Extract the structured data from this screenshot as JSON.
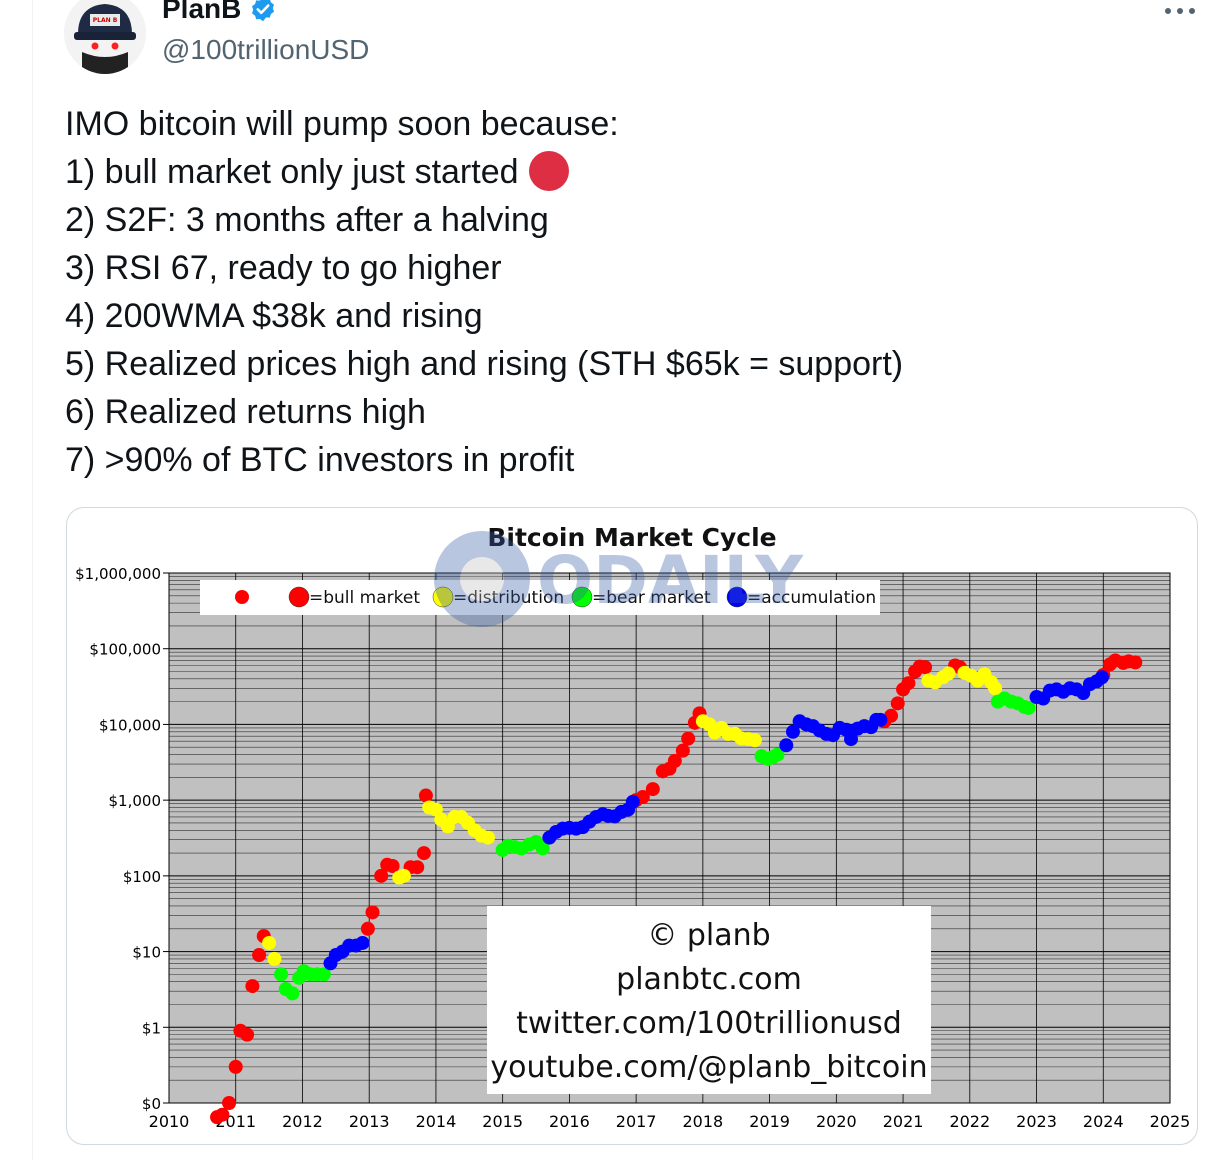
{
  "author": {
    "display_name": "PlanB",
    "handle": "@100trillionUSD",
    "verified": true,
    "avatar_text": "PLANB 100trillionUSD"
  },
  "tweet": {
    "lines": [
      "IMO bitcoin will pump soon because:",
      "1) bull market only just started",
      "2) S2F: 3 months after a halving",
      "3) RSI 67, ready to go higher",
      "4) 200WMA $38k and rising",
      "5) Realized prices high and rising (STH $65k = support)",
      "6) Realized returns high",
      "7) >90% of BTC investors in profit"
    ],
    "emoji": "red-circle"
  },
  "watermark": "ODAILY",
  "colors": {
    "bull": "#ff0000",
    "distribution": "#ffff00",
    "bear": "#00ff00",
    "accumulation": "#0000ff",
    "verified": "#1d9bf0",
    "plot_bg": "#c0c0c0"
  },
  "chart_data": {
    "type": "scatter",
    "title": "Bitcoin Market Cycle",
    "y_scale": "log",
    "xlim": [
      2010,
      2025
    ],
    "ylim": [
      0.1,
      1000000
    ],
    "x_ticks": [
      "2010",
      "2011",
      "2012",
      "2013",
      "2014",
      "2015",
      "2016",
      "2017",
      "2018",
      "2019",
      "2020",
      "2021",
      "2022",
      "2023",
      "2024",
      "2025"
    ],
    "y_ticks": [
      {
        "value": 0.1,
        "label": "$0"
      },
      {
        "value": 1,
        "label": "$1"
      },
      {
        "value": 10,
        "label": "$10"
      },
      {
        "value": 100,
        "label": "$100"
      },
      {
        "value": 1000,
        "label": "$1,000"
      },
      {
        "value": 10000,
        "label": "$10,000"
      },
      {
        "value": 100000,
        "label": "$100,000"
      },
      {
        "value": 1000000,
        "label": "$1,000,000"
      }
    ],
    "legend": {
      "placement": "top",
      "entries": [
        {
          "key": "bull",
          "label": "=bull market"
        },
        {
          "key": "distribution",
          "label": "=distribution"
        },
        {
          "key": "bear",
          "label": "=bear market"
        },
        {
          "key": "accumulation",
          "label": "=accumulation"
        }
      ]
    },
    "annotation_lines": [
      "© planb",
      "planbtc.com",
      "twitter.com/100trillionusd",
      "youtube.com/@planb_bitcoin"
    ],
    "series": [
      {
        "key": "bull",
        "points": [
          [
            2010.72,
            0.065
          ],
          [
            2010.8,
            0.07
          ],
          [
            2010.9,
            0.1
          ],
          [
            2011.0,
            0.3
          ],
          [
            2011.07,
            0.9
          ],
          [
            2011.17,
            0.8
          ],
          [
            2011.25,
            3.5
          ],
          [
            2011.35,
            9
          ],
          [
            2011.42,
            16
          ],
          [
            2012.98,
            20
          ],
          [
            2013.05,
            33
          ],
          [
            2013.18,
            100
          ],
          [
            2013.27,
            140
          ],
          [
            2013.35,
            135
          ],
          [
            2013.62,
            130
          ],
          [
            2013.72,
            130
          ],
          [
            2013.82,
            200
          ],
          [
            2013.85,
            1150
          ],
          [
            2017.0,
            1000
          ],
          [
            2017.1,
            1100
          ],
          [
            2017.25,
            1400
          ],
          [
            2017.4,
            2400
          ],
          [
            2017.5,
            2600
          ],
          [
            2017.58,
            3300
          ],
          [
            2017.7,
            4500
          ],
          [
            2017.78,
            6500
          ],
          [
            2017.88,
            10500
          ],
          [
            2017.95,
            14000
          ],
          [
            2020.72,
            11000
          ],
          [
            2020.82,
            13000
          ],
          [
            2020.92,
            19000
          ],
          [
            2021.0,
            29000
          ],
          [
            2021.08,
            35000
          ],
          [
            2021.18,
            50000
          ],
          [
            2021.25,
            58000
          ],
          [
            2021.33,
            57000
          ],
          [
            2021.78,
            60000
          ],
          [
            2021.85,
            57000
          ],
          [
            2024.0,
            45000
          ],
          [
            2024.1,
            62000
          ],
          [
            2024.18,
            70000
          ],
          [
            2024.3,
            65000
          ],
          [
            2024.38,
            68000
          ],
          [
            2024.48,
            66000
          ]
        ]
      },
      {
        "key": "distribution",
        "points": [
          [
            2011.5,
            13
          ],
          [
            2011.58,
            8
          ],
          [
            2013.45,
            95
          ],
          [
            2013.52,
            100
          ],
          [
            2013.9,
            800
          ],
          [
            2014.0,
            750
          ],
          [
            2014.08,
            550
          ],
          [
            2014.18,
            450
          ],
          [
            2014.28,
            600
          ],
          [
            2014.38,
            600
          ],
          [
            2014.48,
            500
          ],
          [
            2014.58,
            400
          ],
          [
            2014.68,
            340
          ],
          [
            2014.78,
            320
          ],
          [
            2018.0,
            11000
          ],
          [
            2018.1,
            10000
          ],
          [
            2018.18,
            7800
          ],
          [
            2018.28,
            9000
          ],
          [
            2018.38,
            7500
          ],
          [
            2018.48,
            7500
          ],
          [
            2018.58,
            6500
          ],
          [
            2018.68,
            6400
          ],
          [
            2018.78,
            6200
          ],
          [
            2021.38,
            38000
          ],
          [
            2021.48,
            36000
          ],
          [
            2021.6,
            42000
          ],
          [
            2021.68,
            47000
          ],
          [
            2021.92,
            48000
          ],
          [
            2022.02,
            44000
          ],
          [
            2022.12,
            38000
          ],
          [
            2022.22,
            46000
          ],
          [
            2022.32,
            36000
          ],
          [
            2022.38,
            30000
          ]
        ]
      },
      {
        "key": "bear",
        "points": [
          [
            2011.68,
            5
          ],
          [
            2011.75,
            3.2
          ],
          [
            2011.85,
            2.8
          ],
          [
            2011.95,
            4.5
          ],
          [
            2012.02,
            5.5
          ],
          [
            2012.12,
            5
          ],
          [
            2012.22,
            5
          ],
          [
            2012.32,
            5
          ],
          [
            2015.0,
            220
          ],
          [
            2015.08,
            250
          ],
          [
            2015.18,
            240
          ],
          [
            2015.28,
            230
          ],
          [
            2015.4,
            260
          ],
          [
            2015.5,
            280
          ],
          [
            2015.6,
            230
          ],
          [
            2018.88,
            3800
          ],
          [
            2018.98,
            3500
          ],
          [
            2019.05,
            3700
          ],
          [
            2019.12,
            4000
          ],
          [
            2022.42,
            20000
          ],
          [
            2022.52,
            22000
          ],
          [
            2022.62,
            20000
          ],
          [
            2022.72,
            19000
          ],
          [
            2022.82,
            17000
          ],
          [
            2022.88,
            16500
          ]
        ]
      },
      {
        "key": "accumulation",
        "points": [
          [
            2012.42,
            7
          ],
          [
            2012.5,
            9
          ],
          [
            2012.6,
            10
          ],
          [
            2012.7,
            12
          ],
          [
            2012.8,
            12
          ],
          [
            2012.9,
            13
          ],
          [
            2015.7,
            320
          ],
          [
            2015.8,
            380
          ],
          [
            2015.9,
            420
          ],
          [
            2016.0,
            430
          ],
          [
            2016.1,
            420
          ],
          [
            2016.2,
            440
          ],
          [
            2016.3,
            520
          ],
          [
            2016.4,
            600
          ],
          [
            2016.5,
            650
          ],
          [
            2016.58,
            620
          ],
          [
            2016.68,
            610
          ],
          [
            2016.78,
            700
          ],
          [
            2016.88,
            750
          ],
          [
            2016.95,
            950
          ],
          [
            2019.25,
            5300
          ],
          [
            2019.35,
            8000
          ],
          [
            2019.45,
            11000
          ],
          [
            2019.55,
            10000
          ],
          [
            2019.65,
            9500
          ],
          [
            2019.75,
            8300
          ],
          [
            2019.85,
            7500
          ],
          [
            2019.95,
            7200
          ],
          [
            2020.05,
            9000
          ],
          [
            2020.15,
            8500
          ],
          [
            2020.22,
            6400
          ],
          [
            2020.32,
            8800
          ],
          [
            2020.42,
            9500
          ],
          [
            2020.52,
            9200
          ],
          [
            2020.6,
            11500
          ],
          [
            2020.66,
            11500
          ],
          [
            2023.0,
            23000
          ],
          [
            2023.1,
            22000
          ],
          [
            2023.2,
            28000
          ],
          [
            2023.3,
            29000
          ],
          [
            2023.4,
            27000
          ],
          [
            2023.5,
            30000
          ],
          [
            2023.6,
            29000
          ],
          [
            2023.7,
            26000
          ],
          [
            2023.8,
            34000
          ],
          [
            2023.9,
            37000
          ],
          [
            2023.98,
            42000
          ]
        ]
      }
    ]
  }
}
